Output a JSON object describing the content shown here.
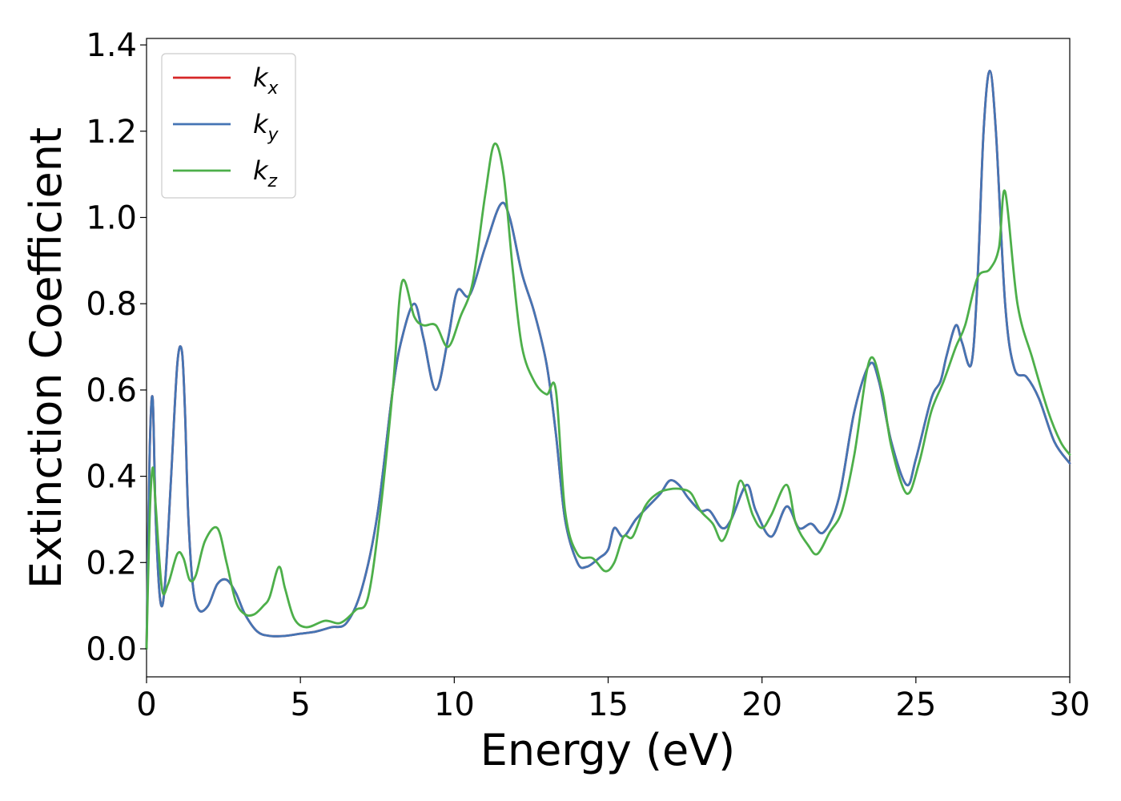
{
  "chart_data": {
    "type": "line",
    "title": "",
    "xlabel": "Energy (eV)",
    "ylabel": "Extinction Coefficient",
    "xlim": [
      0,
      30
    ],
    "ylim": [
      -0.065,
      1.415
    ],
    "xticks": [
      0,
      5,
      10,
      15,
      20,
      25,
      30
    ],
    "xtick_labels": [
      "0",
      "5",
      "10",
      "15",
      "20",
      "25",
      "30"
    ],
    "yticks": [
      0.0,
      0.2,
      0.4,
      0.6,
      0.8,
      1.0,
      1.2,
      1.4
    ],
    "ytick_labels": [
      "0.0",
      "0.2",
      "0.4",
      "0.6",
      "0.8",
      "1.0",
      "1.2",
      "1.4"
    ],
    "grid": false,
    "legend": {
      "placement": "top-left"
    },
    "series": [
      {
        "name": "k_x",
        "legend_base": "k",
        "legend_sub": "x",
        "color": "#d62728",
        "x": [
          0,
          0.1,
          0.2,
          0.3,
          0.45,
          0.6,
          0.8,
          1.0,
          1.15,
          1.25,
          1.35,
          1.5,
          1.7,
          2.0,
          2.3,
          2.6,
          2.9,
          3.2,
          3.6,
          4.0,
          4.5,
          5.0,
          5.5,
          6.0,
          6.5,
          7.0,
          7.5,
          8.0,
          8.3,
          8.7,
          9.0,
          9.4,
          9.8,
          10.1,
          10.5,
          11.0,
          11.5,
          11.8,
          12.2,
          12.6,
          13.0,
          13.3,
          13.6,
          14.0,
          14.3,
          14.7,
          15.0,
          15.2,
          15.5,
          15.9,
          16.3,
          16.7,
          17.0,
          17.3,
          17.6,
          18.0,
          18.3,
          18.7,
          19.0,
          19.5,
          19.8,
          20.3,
          20.8,
          21.2,
          21.6,
          22.0,
          22.5,
          23.0,
          23.5,
          23.8,
          24.2,
          24.7,
          25.0,
          25.5,
          25.8,
          26.0,
          26.3,
          26.5,
          26.8,
          27.0,
          27.2,
          27.4,
          27.6,
          27.9,
          28.2,
          28.6,
          29.0,
          29.5,
          30.0
        ],
        "y": [
          0.0,
          0.45,
          0.58,
          0.3,
          0.11,
          0.15,
          0.4,
          0.66,
          0.69,
          0.55,
          0.32,
          0.15,
          0.09,
          0.1,
          0.15,
          0.16,
          0.13,
          0.08,
          0.04,
          0.03,
          0.03,
          0.035,
          0.04,
          0.05,
          0.06,
          0.14,
          0.31,
          0.6,
          0.72,
          0.8,
          0.72,
          0.6,
          0.72,
          0.83,
          0.82,
          0.93,
          1.03,
          1.0,
          0.87,
          0.78,
          0.66,
          0.5,
          0.3,
          0.2,
          0.19,
          0.21,
          0.23,
          0.28,
          0.26,
          0.3,
          0.33,
          0.36,
          0.39,
          0.38,
          0.35,
          0.32,
          0.32,
          0.28,
          0.3,
          0.38,
          0.32,
          0.26,
          0.33,
          0.28,
          0.29,
          0.27,
          0.35,
          0.55,
          0.66,
          0.62,
          0.48,
          0.38,
          0.44,
          0.58,
          0.62,
          0.68,
          0.75,
          0.71,
          0.66,
          0.85,
          1.2,
          1.34,
          1.2,
          0.8,
          0.65,
          0.63,
          0.58,
          0.48,
          0.43
        ]
      },
      {
        "name": "k_y",
        "legend_base": "k",
        "legend_sub": "y",
        "color": "#4575b4",
        "x": [
          0,
          0.1,
          0.2,
          0.3,
          0.45,
          0.6,
          0.8,
          1.0,
          1.15,
          1.25,
          1.35,
          1.5,
          1.7,
          2.0,
          2.3,
          2.6,
          2.9,
          3.2,
          3.6,
          4.0,
          4.5,
          5.0,
          5.5,
          6.0,
          6.5,
          7.0,
          7.5,
          8.0,
          8.3,
          8.7,
          9.0,
          9.4,
          9.8,
          10.1,
          10.5,
          11.0,
          11.5,
          11.8,
          12.2,
          12.6,
          13.0,
          13.3,
          13.6,
          14.0,
          14.3,
          14.7,
          15.0,
          15.2,
          15.5,
          15.9,
          16.3,
          16.7,
          17.0,
          17.3,
          17.6,
          18.0,
          18.3,
          18.7,
          19.0,
          19.5,
          19.8,
          20.3,
          20.8,
          21.2,
          21.6,
          22.0,
          22.5,
          23.0,
          23.5,
          23.8,
          24.2,
          24.7,
          25.0,
          25.5,
          25.8,
          26.0,
          26.3,
          26.5,
          26.8,
          27.0,
          27.2,
          27.4,
          27.6,
          27.9,
          28.2,
          28.6,
          29.0,
          29.5,
          30.0
        ],
        "y": [
          0.0,
          0.45,
          0.58,
          0.3,
          0.11,
          0.15,
          0.4,
          0.66,
          0.69,
          0.55,
          0.32,
          0.15,
          0.09,
          0.1,
          0.15,
          0.16,
          0.13,
          0.08,
          0.04,
          0.03,
          0.03,
          0.035,
          0.04,
          0.05,
          0.06,
          0.14,
          0.31,
          0.6,
          0.72,
          0.8,
          0.72,
          0.6,
          0.72,
          0.83,
          0.82,
          0.93,
          1.03,
          1.0,
          0.87,
          0.78,
          0.66,
          0.5,
          0.3,
          0.2,
          0.19,
          0.21,
          0.23,
          0.28,
          0.26,
          0.3,
          0.33,
          0.36,
          0.39,
          0.38,
          0.35,
          0.32,
          0.32,
          0.28,
          0.3,
          0.38,
          0.32,
          0.26,
          0.33,
          0.28,
          0.29,
          0.27,
          0.35,
          0.55,
          0.66,
          0.62,
          0.48,
          0.38,
          0.44,
          0.58,
          0.62,
          0.68,
          0.75,
          0.71,
          0.66,
          0.85,
          1.2,
          1.34,
          1.2,
          0.8,
          0.65,
          0.63,
          0.58,
          0.48,
          0.43
        ]
      },
      {
        "name": "k_z",
        "legend_base": "k",
        "legend_sub": "z",
        "color": "#4daf4a",
        "x": [
          0,
          0.1,
          0.2,
          0.3,
          0.5,
          0.7,
          1.0,
          1.2,
          1.4,
          1.6,
          1.9,
          2.3,
          2.6,
          2.9,
          3.2,
          3.5,
          3.8,
          4.0,
          4.3,
          4.5,
          4.8,
          5.2,
          5.8,
          6.3,
          6.8,
          7.2,
          7.6,
          8.0,
          8.3,
          8.7,
          9.0,
          9.4,
          9.8,
          10.2,
          10.6,
          11.0,
          11.3,
          11.6,
          11.9,
          12.2,
          12.6,
          13.0,
          13.3,
          13.6,
          14.0,
          14.5,
          14.9,
          15.2,
          15.5,
          15.8,
          16.2,
          16.6,
          17.0,
          17.4,
          17.7,
          18.0,
          18.4,
          18.7,
          19.0,
          19.3,
          19.7,
          20.0,
          20.3,
          20.8,
          21.1,
          21.5,
          21.8,
          22.2,
          22.6,
          23.0,
          23.5,
          23.9,
          24.2,
          24.7,
          25.1,
          25.5,
          25.9,
          26.3,
          26.6,
          27.0,
          27.4,
          27.7,
          27.9,
          28.3,
          28.8,
          29.3,
          29.7,
          30.0
        ],
        "y": [
          0.0,
          0.3,
          0.42,
          0.33,
          0.14,
          0.15,
          0.22,
          0.21,
          0.16,
          0.17,
          0.25,
          0.28,
          0.2,
          0.11,
          0.08,
          0.08,
          0.1,
          0.12,
          0.19,
          0.14,
          0.07,
          0.05,
          0.065,
          0.06,
          0.09,
          0.12,
          0.32,
          0.6,
          0.85,
          0.77,
          0.75,
          0.75,
          0.7,
          0.77,
          0.85,
          1.05,
          1.17,
          1.1,
          0.88,
          0.7,
          0.62,
          0.59,
          0.6,
          0.32,
          0.22,
          0.21,
          0.18,
          0.2,
          0.26,
          0.26,
          0.33,
          0.36,
          0.37,
          0.37,
          0.36,
          0.32,
          0.29,
          0.25,
          0.3,
          0.39,
          0.31,
          0.28,
          0.31,
          0.38,
          0.29,
          0.24,
          0.22,
          0.27,
          0.32,
          0.45,
          0.67,
          0.6,
          0.47,
          0.36,
          0.43,
          0.55,
          0.62,
          0.7,
          0.75,
          0.86,
          0.88,
          0.93,
          1.06,
          0.8,
          0.67,
          0.55,
          0.48,
          0.45
        ]
      }
    ]
  }
}
